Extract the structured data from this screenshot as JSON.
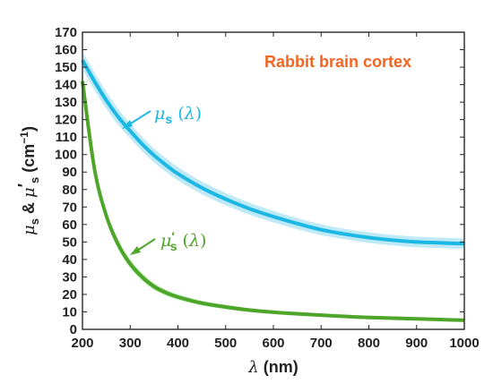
{
  "chart_data": {
    "type": "line",
    "title": "Rabbit brain cortex",
    "xlabel": "λ (nm)",
    "ylabel": "μs & μ′s (cm⁻¹)",
    "xlim": [
      200,
      1000
    ],
    "ylim": [
      0,
      170
    ],
    "xticks": [
      200,
      300,
      400,
      500,
      600,
      700,
      800,
      900,
      1000
    ],
    "yticks": [
      0,
      10,
      20,
      30,
      40,
      50,
      60,
      70,
      80,
      90,
      100,
      110,
      120,
      130,
      140,
      150,
      160,
      170
    ],
    "grid": false,
    "colors": {
      "mu_s": "#1ab8e3",
      "mu_s_band": "#bfe9f7",
      "mu_s_prime": "#4fa52a",
      "mu_s_prime_band": "#a6ec9f",
      "title": "#f26522"
    },
    "x": [
      200,
      225,
      250,
      275,
      300,
      325,
      350,
      375,
      400,
      450,
      500,
      550,
      600,
      650,
      700,
      750,
      800,
      850,
      900,
      950,
      1000
    ],
    "series": [
      {
        "key": "mu_s",
        "label": "μs (λ)",
        "values": [
          154,
          142,
          131,
          121.5,
          113.5,
          106,
          99.5,
          94,
          89,
          81,
          74.5,
          69,
          64.5,
          60.5,
          57,
          54.5,
          52.5,
          51,
          50,
          49.5,
          49
        ],
        "band": [
          5,
          5,
          4.8,
          4.5,
          4.3,
          4.1,
          4,
          3.9,
          3.8,
          3.6,
          3.5,
          3.4,
          3.3,
          3.2,
          3.1,
          3,
          3,
          3,
          3,
          3,
          3
        ]
      },
      {
        "key": "mu_s_prime",
        "label": "μ′s (λ)",
        "values": [
          142,
          92,
          65,
          48.5,
          37.5,
          30,
          24.5,
          21,
          18.5,
          15,
          12.8,
          11,
          9.8,
          8.9,
          8.1,
          7.4,
          6.8,
          6.4,
          6,
          5.6,
          5.2
        ],
        "band": [
          4,
          3.5,
          3,
          2.6,
          2.3,
          2,
          1.8,
          1.6,
          1.5,
          1.3,
          1.2,
          1.1,
          1,
          1,
          1,
          1,
          1,
          1,
          1,
          1,
          1
        ]
      }
    ]
  }
}
